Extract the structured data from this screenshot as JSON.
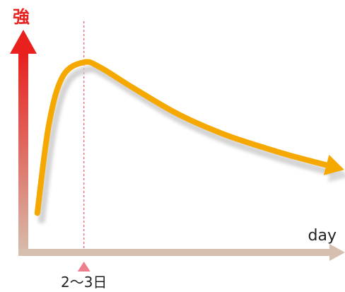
{
  "chart_data": {
    "type": "line",
    "ylabel": "強",
    "xlabel": "day",
    "peak_label": "2〜3日",
    "series": [
      {
        "curve": [
          [
            0.0,
            0.08
          ],
          [
            0.25,
            0.6
          ],
          [
            0.55,
            0.88
          ],
          [
            1.0,
            0.96
          ],
          [
            1.35,
            0.93
          ],
          [
            2.0,
            0.82
          ],
          [
            3.0,
            0.66
          ],
          [
            4.0,
            0.54
          ],
          [
            5.0,
            0.45
          ],
          [
            5.5,
            0.41
          ],
          [
            6.2,
            0.36
          ]
        ]
      }
    ],
    "peak_x": 1.0,
    "xlim": [
      -0.3,
      6.6
    ],
    "ylim": [
      -0.15,
      1.15
    ],
    "colors": {
      "curve": "#f5a800",
      "curve_shadow": "#c9c9c9",
      "y_axis_top": "#e8201e",
      "y_axis_bottom": "#d6bfae",
      "x_axis": "#d6bfae",
      "peak_line": "#e05a6a",
      "peak_marker": "#ec7f8b",
      "strength_label": "#e8201e",
      "text": "#222222"
    }
  }
}
